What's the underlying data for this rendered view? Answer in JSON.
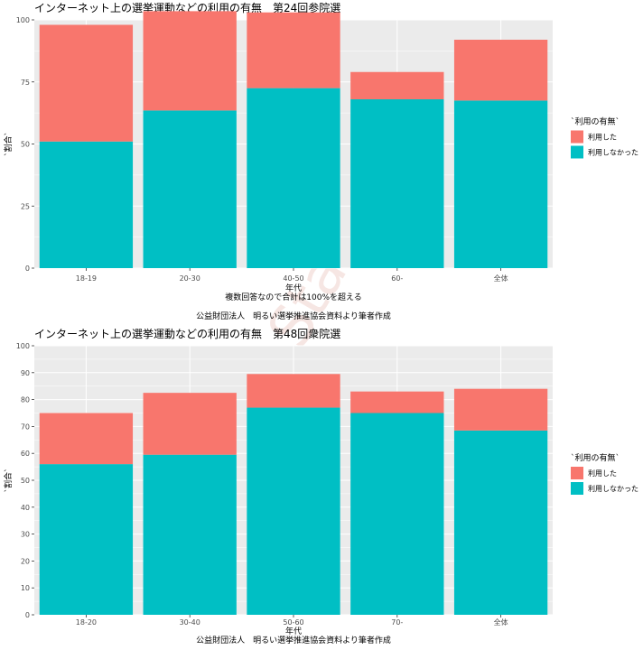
{
  "colors": {
    "used": "#F8766D",
    "not_used": "#00BFC4",
    "panel": "#EBEBEB",
    "grid": "#FFFFFF"
  },
  "watermark": "Data_Stats_JP",
  "legend": {
    "title": "`利用の有無`",
    "items": [
      "利用した",
      "利用しなかった"
    ]
  },
  "chart_data": [
    {
      "type": "bar",
      "stacked": true,
      "title": "インターネット上の選挙運動などの利用の有無　第24回参院選",
      "xlabel": "年代",
      "ylabel": "`割合`",
      "captions": [
        "複数回答なので合計は100%を超える",
        "公益財団法人　明るい選挙推進協会資料より筆者作成"
      ],
      "categories": [
        "18-19",
        "20-30",
        "40-50",
        "60-",
        "全体"
      ],
      "ylim": [
        0,
        100
      ],
      "yticks": [
        0,
        25,
        50,
        75,
        100
      ],
      "grid": true,
      "series": [
        {
          "name": "利用しなかった",
          "values": [
            51,
            63.5,
            72.5,
            68,
            67.5
          ]
        },
        {
          "name": "利用した",
          "values": [
            47,
            40,
            30.5,
            11,
            24.5
          ]
        }
      ]
    },
    {
      "type": "bar",
      "stacked": true,
      "title": "インターネット上の選挙運動などの利用の有無　第48回衆院選",
      "xlabel": "年代",
      "ylabel": "`割合`",
      "captions": [
        "公益財団法人　明るい選挙推進協会資料より筆者作成"
      ],
      "categories": [
        "18-20",
        "30-40",
        "50-60",
        "70-",
        "全体"
      ],
      "ylim": [
        0,
        100
      ],
      "yticks": [
        0,
        10,
        20,
        30,
        40,
        50,
        60,
        70,
        80,
        90,
        100
      ],
      "grid": true,
      "series": [
        {
          "name": "利用しなかった",
          "values": [
            56,
            59.5,
            77,
            75,
            68.5
          ]
        },
        {
          "name": "利用した",
          "values": [
            19,
            23,
            12.5,
            8,
            15.5
          ]
        }
      ]
    }
  ]
}
